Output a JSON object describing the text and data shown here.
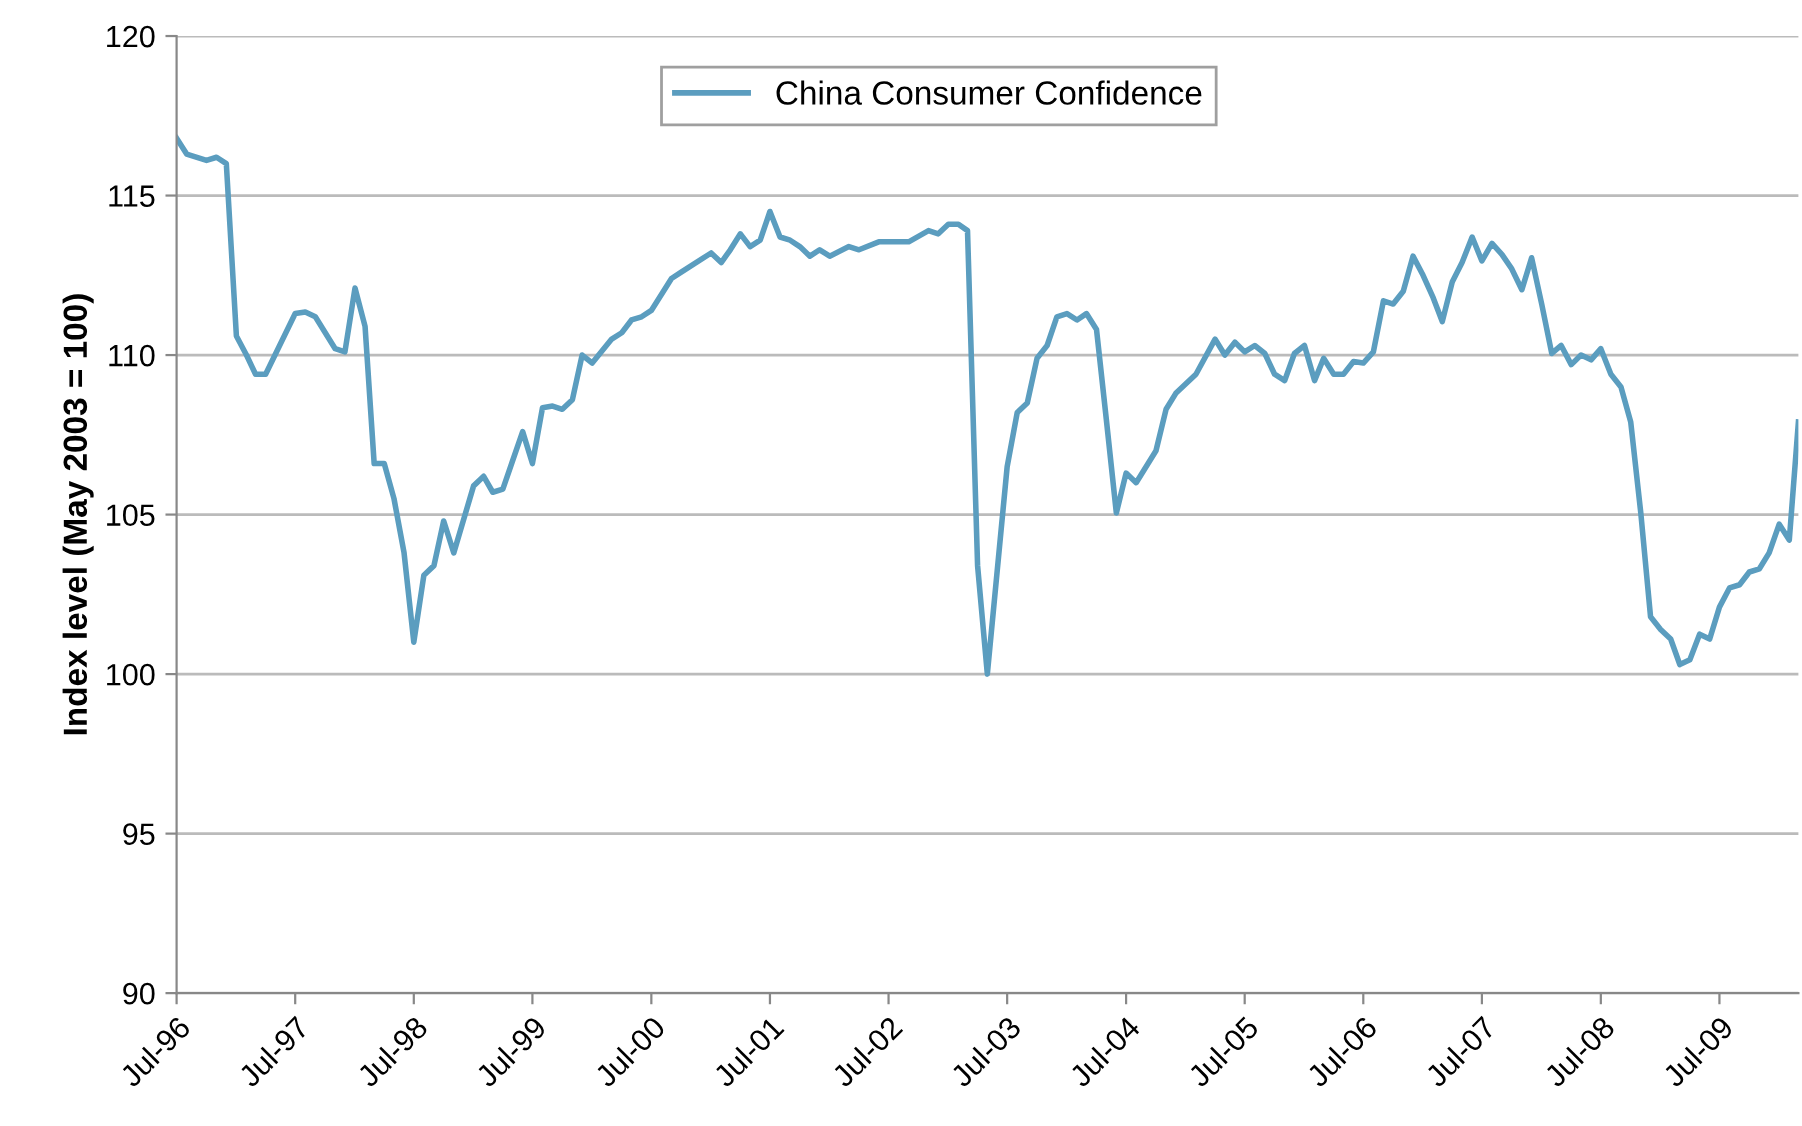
{
  "chart_data": {
    "type": "line",
    "ylabel": "Index level (May 2003 = 100)",
    "legend": "top",
    "grid": "y",
    "line_style": "solid",
    "ylim": [
      90,
      120
    ],
    "yticks": [
      90,
      95,
      100,
      105,
      110,
      115,
      120
    ],
    "xlim": [
      "1996-07",
      "2010-03"
    ],
    "xticks": [
      {
        "value": "1996-07",
        "label": "Jul-96"
      },
      {
        "value": "1997-07",
        "label": "Jul-97"
      },
      {
        "value": "1998-07",
        "label": "Jul-98"
      },
      {
        "value": "1999-07",
        "label": "Jul-99"
      },
      {
        "value": "2000-07",
        "label": "Jul-00"
      },
      {
        "value": "2001-07",
        "label": "Jul-01"
      },
      {
        "value": "2002-07",
        "label": "Jul-02"
      },
      {
        "value": "2003-07",
        "label": "Jul-03"
      },
      {
        "value": "2004-07",
        "label": "Jul-04"
      },
      {
        "value": "2005-07",
        "label": "Jul-05"
      },
      {
        "value": "2006-07",
        "label": "Jul-06"
      },
      {
        "value": "2007-07",
        "label": "Jul-07"
      },
      {
        "value": "2008-07",
        "label": "Jul-08"
      },
      {
        "value": "2009-07",
        "label": "Jul-09"
      }
    ],
    "series": [
      {
        "name": "China Consumer Confidence",
        "color": "#5b9dbf",
        "x": [
          "1996-07",
          "1996-08",
          "1996-10",
          "1996-11",
          "1996-12",
          "1997-01",
          "1997-02",
          "1997-03",
          "1997-04",
          "1997-07",
          "1997-08",
          "1997-09",
          "1997-11",
          "1997-12",
          "1998-01",
          "1998-02",
          "1998-03",
          "1998-04",
          "1998-05",
          "1998-06",
          "1998-07",
          "1998-08",
          "1998-09",
          "1998-10",
          "1998-11",
          "1999-01",
          "1999-02",
          "1999-03",
          "1999-04",
          "1999-06",
          "1999-07",
          "1999-08",
          "1999-09",
          "1999-10",
          "1999-11",
          "1999-12",
          "2000-01",
          "2000-03",
          "2000-04",
          "2000-05",
          "2000-06",
          "2000-07",
          "2000-09",
          "2000-10",
          "2001-01",
          "2001-02",
          "2001-03",
          "2001-04",
          "2001-05",
          "2001-06",
          "2001-07",
          "2001-08",
          "2001-09",
          "2001-10",
          "2001-11",
          "2001-12",
          "2002-01",
          "2002-03",
          "2002-04",
          "2002-06",
          "2002-09",
          "2002-11",
          "2002-12",
          "2003-01",
          "2003-02",
          "2003-03",
          "2003-04",
          "2003-05",
          "2003-07",
          "2003-08",
          "2003-09",
          "2003-10",
          "2003-11",
          "2003-12",
          "2004-01",
          "2004-02",
          "2004-03",
          "2004-04",
          "2004-05",
          "2004-06",
          "2004-07",
          "2004-08",
          "2004-10",
          "2004-11",
          "2004-12",
          "2005-02",
          "2005-04",
          "2005-05",
          "2005-06",
          "2005-07",
          "2005-08",
          "2005-09",
          "2005-10",
          "2005-11",
          "2005-12",
          "2006-01",
          "2006-02",
          "2006-03",
          "2006-04",
          "2006-05",
          "2006-06",
          "2006-07",
          "2006-08",
          "2006-09",
          "2006-10",
          "2006-11",
          "2006-12",
          "2007-01",
          "2007-02",
          "2007-03",
          "2007-04",
          "2007-05",
          "2007-06",
          "2007-07",
          "2007-08",
          "2007-09",
          "2007-10",
          "2007-11",
          "2007-12",
          "2008-01",
          "2008-02",
          "2008-03",
          "2008-04",
          "2008-05",
          "2008-06",
          "2008-07",
          "2008-08",
          "2008-09",
          "2008-10",
          "2008-11",
          "2008-12",
          "2009-01",
          "2009-02",
          "2009-03",
          "2009-04",
          "2009-05",
          "2009-06",
          "2009-07",
          "2009-08",
          "2009-09",
          "2009-10",
          "2009-11",
          "2009-12",
          "2010-01",
          "2010-02",
          "2010-03"
        ],
        "values": [
          116.8,
          116.3,
          116.1,
          116.2,
          116.0,
          110.6,
          110.0,
          109.4,
          109.4,
          111.3,
          111.35,
          111.2,
          110.2,
          110.1,
          112.1,
          110.9,
          106.6,
          106.6,
          105.5,
          103.8,
          101.0,
          103.1,
          103.4,
          104.8,
          103.8,
          105.9,
          106.2,
          105.7,
          105.8,
          107.6,
          106.6,
          108.35,
          108.4,
          108.3,
          108.6,
          110.0,
          109.75,
          110.5,
          110.7,
          111.1,
          111.2,
          111.4,
          112.4,
          112.6,
          113.2,
          112.9,
          113.3,
          113.8,
          113.4,
          113.6,
          114.5,
          113.7,
          113.6,
          113.4,
          113.1,
          113.3,
          113.1,
          113.4,
          113.3,
          113.55,
          113.55,
          113.9,
          113.8,
          114.1,
          114.1,
          113.9,
          103.4,
          100.0,
          106.5,
          108.2,
          108.5,
          109.9,
          110.3,
          111.2,
          111.3,
          111.1,
          111.3,
          110.8,
          108.0,
          105.05,
          106.3,
          106.0,
          107.0,
          108.3,
          108.8,
          109.4,
          110.5,
          110.0,
          110.4,
          110.1,
          110.3,
          110.05,
          109.4,
          109.2,
          110.05,
          110.3,
          109.2,
          109.9,
          109.4,
          109.4,
          109.8,
          109.75,
          110.1,
          111.7,
          111.6,
          112.0,
          113.1,
          112.5,
          111.8,
          111.05,
          112.3,
          112.9,
          113.7,
          112.95,
          113.5,
          113.15,
          112.7,
          112.05,
          113.05,
          111.6,
          110.05,
          110.3,
          109.7,
          110.0,
          109.85,
          110.2,
          109.4,
          109.0,
          107.9,
          105.05,
          101.8,
          101.4,
          101.1,
          100.3,
          100.45,
          101.25,
          101.1,
          102.1,
          102.7,
          102.8,
          103.2,
          103.3,
          103.8,
          104.7,
          104.2,
          107.9
        ]
      }
    ]
  }
}
